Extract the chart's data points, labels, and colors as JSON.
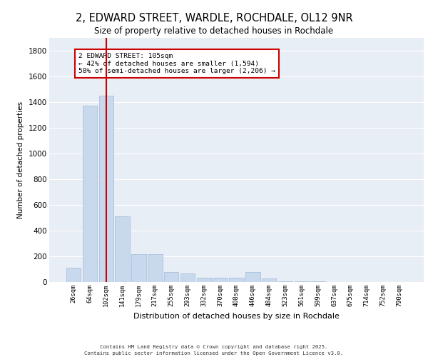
{
  "title_line1": "2, EDWARD STREET, WARDLE, ROCHDALE, OL12 9NR",
  "title_line2": "Size of property relative to detached houses in Rochdale",
  "xlabel": "Distribution of detached houses by size in Rochdale",
  "ylabel": "Number of detached properties",
  "categories": [
    "26sqm",
    "64sqm",
    "102sqm",
    "141sqm",
    "179sqm",
    "217sqm",
    "255sqm",
    "293sqm",
    "332sqm",
    "370sqm",
    "408sqm",
    "446sqm",
    "484sqm",
    "523sqm",
    "561sqm",
    "599sqm",
    "637sqm",
    "675sqm",
    "714sqm",
    "752sqm",
    "790sqm"
  ],
  "values": [
    110,
    1370,
    1450,
    510,
    215,
    215,
    80,
    65,
    35,
    35,
    35,
    75,
    30,
    8,
    5,
    3,
    2,
    2,
    1,
    1,
    1
  ],
  "bar_color": "#c9d9ed",
  "bar_edge_color": "#a0b8d8",
  "vline_color": "#cc0000",
  "annotation_text": "2 EDWARD STREET: 105sqm\n← 42% of detached houses are smaller (1,594)\n58% of semi-detached houses are larger (2,206) →",
  "annotation_box_color": "#ffffff",
  "annotation_box_edge_color": "#cc0000",
  "ylim": [
    0,
    1900
  ],
  "yticks": [
    0,
    200,
    400,
    600,
    800,
    1000,
    1200,
    1400,
    1600,
    1800
  ],
  "background_color": "#e8eef5",
  "grid_color": "#ffffff",
  "footer_line1": "Contains HM Land Registry data © Crown copyright and database right 2025.",
  "footer_line2": "Contains public sector information licensed under the Open Government Licence v3.0."
}
